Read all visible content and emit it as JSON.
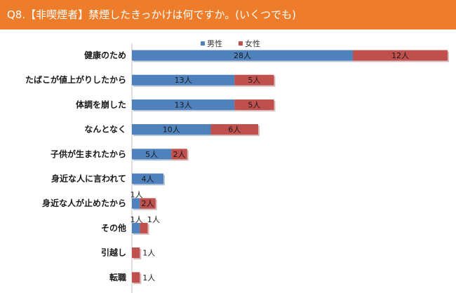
{
  "title": "Q8.【非喫煙者】禁煙したきっかけは何ですか。(いくつでも)",
  "colors": {
    "title_bar": "#ee7d2b",
    "male": "#4f81bd",
    "female": "#c0504d",
    "male_shadow": "#3a6496",
    "female_shadow": "#8f3b39"
  },
  "chart_data": {
    "type": "bar",
    "orientation": "horizontal",
    "stacked": true,
    "unit_suffix": "人",
    "legend_position": "top",
    "grid": false,
    "categories": [
      "健康のため",
      "たばこが値上がりしたから",
      "体調を崩した",
      "なんとなく",
      "子供が生まれたから",
      "身近な人に言われて",
      "身近な人が止めたから",
      "その他",
      "引越し",
      "転職"
    ],
    "series": [
      {
        "name": "男性",
        "values": [
          28,
          13,
          13,
          10,
          5,
          4,
          1,
          1,
          0,
          0
        ]
      },
      {
        "name": "女性",
        "values": [
          12,
          5,
          5,
          6,
          2,
          0,
          2,
          1,
          1,
          1
        ]
      }
    ],
    "value_labels": {
      "男性": [
        "28人",
        "13人",
        "13人",
        "10人",
        "5人",
        "4人",
        "1人",
        "1人",
        "",
        ""
      ],
      "女性": [
        "12人",
        "5人",
        "5人",
        "6人",
        "2人",
        "",
        "2人",
        "1人",
        "1人",
        "1人"
      ]
    }
  }
}
